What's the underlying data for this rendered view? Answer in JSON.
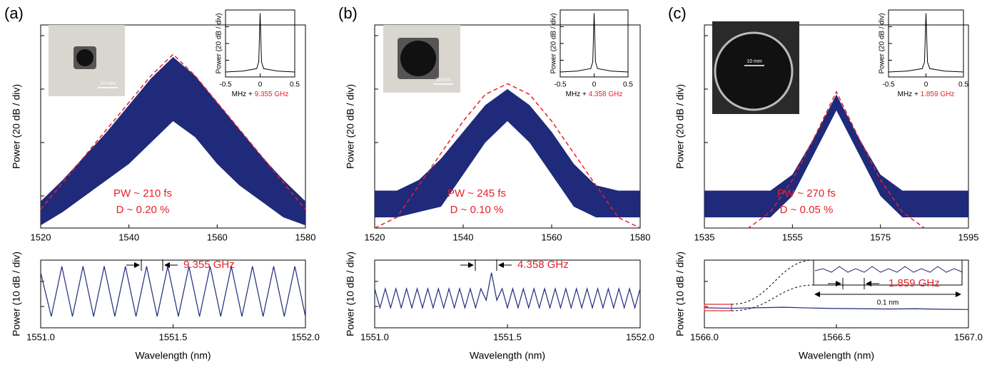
{
  "chart_data": [
    {
      "type": "spectrum",
      "label": "(a)",
      "ylabel": "Power (20 dB / div)",
      "image_scale": "10 mm",
      "x": [
        1520,
        1525,
        1530,
        1535,
        1540,
        1545,
        1550,
        1555,
        1560,
        1565,
        1570,
        1575,
        1580
      ],
      "upper": [
        0.5,
        0.9,
        1.35,
        1.8,
        2.3,
        2.8,
        3.2,
        2.85,
        2.35,
        1.85,
        1.35,
        0.9,
        0.5
      ],
      "lower": [
        0.05,
        0.3,
        0.6,
        0.9,
        1.2,
        1.6,
        2.0,
        1.7,
        1.2,
        0.8,
        0.5,
        0.2,
        0.05
      ],
      "fit": [
        0.35,
        0.85,
        1.35,
        1.85,
        2.35,
        2.85,
        3.25,
        2.85,
        2.35,
        1.85,
        1.35,
        0.85,
        0.35
      ],
      "color": "#1f2a7a",
      "fit_color": "#e8202a",
      "xlim": [
        1520,
        1580
      ],
      "xticks": [
        1520,
        1540,
        1560,
        1580
      ],
      "ylim": [
        0,
        3.8
      ],
      "yticks": [
        0.6,
        1.6,
        2.6,
        3.6
      ],
      "annotations": [
        "PW ~ 210 fs",
        "D ~ 0.20 %"
      ]
    },
    {
      "type": "line",
      "ylabel": "Power (20 dB / div)",
      "xlabel": "MHz +",
      "xlabel_value": "9.355 GHz",
      "x": [
        -0.5,
        -0.25,
        -0.05,
        -0.02,
        0,
        0.02,
        0.05,
        0.25,
        0.5
      ],
      "values": [
        0.3,
        0.35,
        0.5,
        0.9,
        3.8,
        0.9,
        0.5,
        0.35,
        0.3
      ],
      "color": "#000000",
      "xlim": [
        -0.5,
        0.5
      ],
      "xticks": [
        -0.5,
        0,
        0.5
      ],
      "ylim": [
        0,
        4
      ],
      "yticks": [
        1,
        2,
        3
      ]
    },
    {
      "type": "line",
      "ylabel": "Power (10 dB / div)",
      "xlabel": "Wavelength (nm)",
      "x": [
        1551.0,
        1551.04,
        1551.08,
        1551.12,
        1551.16,
        1551.2,
        1551.24,
        1551.28,
        1551.32,
        1551.36,
        1551.4,
        1551.44,
        1551.48,
        1551.52,
        1551.56,
        1551.6,
        1551.64,
        1551.68,
        1551.72,
        1551.76,
        1551.8,
        1551.84,
        1551.88,
        1551.92,
        1551.96,
        1552.0
      ],
      "values": [
        2.2,
        0.45,
        2.45,
        0.45,
        2.45,
        0.45,
        2.45,
        0.45,
        2.45,
        0.45,
        2.45,
        0.45,
        2.45,
        0.45,
        2.45,
        0.45,
        2.45,
        0.45,
        2.45,
        0.45,
        2.45,
        0.45,
        2.45,
        0.45,
        2.45,
        0.45
      ],
      "color": "#1f2a7a",
      "xlim": [
        1551,
        1552
      ],
      "xticks": [
        {
          "value": 1551,
          "label": "1551.0"
        },
        {
          "value": 1551.5,
          "label": "1551.5"
        },
        {
          "value": 1552,
          "label": "1552.0"
        }
      ],
      "ylim": [
        0,
        2.7
      ],
      "yticks": [
        0.85,
        1.85
      ],
      "annotations": [
        "9.355 GHz"
      ]
    },
    {
      "type": "spectrum",
      "label": "(b)",
      "ylabel": "Power (20 dB / div)",
      "image_scale": "10 mm",
      "x": [
        1520,
        1525,
        1530,
        1535,
        1540,
        1545,
        1550,
        1555,
        1560,
        1565,
        1570,
        1575,
        1580
      ],
      "upper": [
        0.7,
        0.7,
        0.9,
        1.3,
        1.8,
        2.3,
        2.6,
        2.3,
        1.8,
        1.2,
        0.8,
        0.7,
        0.7
      ],
      "lower": [
        0.2,
        0.2,
        0.3,
        0.4,
        1.0,
        1.6,
        2.0,
        1.6,
        1.0,
        0.4,
        0.2,
        0.2,
        0.2
      ],
      "fit": [
        0,
        0.2,
        0.8,
        1.4,
        2.0,
        2.5,
        2.7,
        2.5,
        2.0,
        1.4,
        0.8,
        0.2,
        0
      ],
      "color": "#1f2a7a",
      "fit_color": "#e8202a",
      "xlim": [
        1520,
        1580
      ],
      "xticks": [
        1520,
        1540,
        1560,
        1580
      ],
      "ylim": [
        0,
        3.8
      ],
      "yticks": [
        0.6,
        1.6,
        2.6,
        3.6
      ],
      "annotations": [
        "PW ~ 245 fs",
        "D ~ 0.10 %"
      ]
    },
    {
      "type": "line",
      "ylabel": "Power (20 dB / div)",
      "xlabel": "MHz +",
      "xlabel_value": "4.358 GHz",
      "x": [
        -0.5,
        -0.25,
        -0.05,
        -0.02,
        0,
        0.02,
        0.05,
        0.25,
        0.5
      ],
      "values": [
        0.3,
        0.35,
        0.5,
        0.9,
        3.8,
        0.9,
        0.5,
        0.35,
        0.3
      ],
      "color": "#000000",
      "xlim": [
        -0.5,
        0.5
      ],
      "xticks": [
        -0.5,
        0,
        0.5
      ],
      "ylim": [
        0,
        4
      ],
      "yticks": [
        1,
        2,
        3
      ]
    },
    {
      "type": "line",
      "ylabel": "Power (10 dB / div)",
      "xlabel": "Wavelength (nm)",
      "x": [
        1551.0,
        1551.02,
        1551.04,
        1551.06,
        1551.08,
        1551.1,
        1551.12,
        1551.14,
        1551.16,
        1551.18,
        1551.2,
        1551.22,
        1551.24,
        1551.26,
        1551.28,
        1551.3,
        1551.32,
        1551.34,
        1551.36,
        1551.38,
        1551.4,
        1551.42,
        1551.44,
        1551.46,
        1551.48,
        1551.5,
        1551.52,
        1551.54,
        1551.56,
        1551.58,
        1551.6,
        1551.62,
        1551.64,
        1551.66,
        1551.68,
        1551.7,
        1551.72,
        1551.74,
        1551.76,
        1551.78,
        1551.8,
        1551.82,
        1551.84,
        1551.86,
        1551.88,
        1551.9,
        1551.92,
        1551.94,
        1551.96,
        1551.98,
        1552.0
      ],
      "values": [
        1.56,
        0.8,
        1.56,
        0.8,
        1.56,
        0.8,
        1.56,
        0.8,
        1.56,
        0.8,
        1.56,
        0.8,
        1.56,
        0.8,
        1.56,
        0.8,
        1.56,
        0.8,
        1.56,
        0.8,
        1.56,
        1.1,
        2.2,
        1.1,
        1.56,
        0.8,
        1.56,
        0.8,
        1.56,
        0.8,
        1.56,
        0.8,
        1.56,
        0.8,
        1.56,
        0.8,
        1.56,
        0.8,
        1.56,
        0.8,
        1.56,
        0.8,
        1.56,
        0.8,
        1.56,
        0.8,
        1.56,
        0.8,
        1.56,
        0.8,
        1.56
      ],
      "color": "#1f2a7a",
      "xlim": [
        1551,
        1552
      ],
      "xticks": [
        {
          "value": 1551,
          "label": "1551.0"
        },
        {
          "value": 1551.5,
          "label": "1551.5"
        },
        {
          "value": 1552,
          "label": "1552.0"
        }
      ],
      "ylim": [
        0,
        2.7
      ],
      "yticks": [
        0.85,
        1.85
      ],
      "annotations": [
        "4.358 GHz"
      ]
    },
    {
      "type": "spectrum",
      "label": "(c)",
      "ylabel": "Power (20 dB / div)",
      "image_scale": "10 mm",
      "x": [
        1535,
        1540,
        1545,
        1550,
        1555,
        1560,
        1565,
        1570,
        1575,
        1580,
        1585,
        1590,
        1595
      ],
      "upper": [
        0.7,
        0.7,
        0.7,
        0.7,
        1.0,
        1.7,
        2.5,
        1.7,
        1.0,
        0.7,
        0.7,
        0.7,
        0.7
      ],
      "lower": [
        0.2,
        0.2,
        0.2,
        0.2,
        0.6,
        1.4,
        2.2,
        1.4,
        0.6,
        0.2,
        0.2,
        0.2,
        0.2
      ],
      "fit": [
        0,
        0,
        0,
        0.3,
        0.9,
        1.7,
        2.55,
        1.7,
        0.9,
        0.3,
        0,
        0,
        0
      ],
      "color": "#1f2a7a",
      "fit_color": "#e8202a",
      "xlim": [
        1535,
        1595
      ],
      "xticks": [
        1535,
        1555,
        1575,
        1595
      ],
      "ylim": [
        0,
        3.8
      ],
      "yticks": [
        0.6,
        1.6,
        2.6,
        3.6
      ],
      "annotations": [
        "PW ~ 270 fs",
        "D ~ 0.05 %"
      ]
    },
    {
      "type": "line",
      "ylabel": "Power (20 dB / div)",
      "xlabel": "MHz +",
      "xlabel_value": "1.859 GHz",
      "x": [
        -0.5,
        -0.25,
        -0.05,
        -0.02,
        0,
        0.02,
        0.05,
        0.25,
        0.5
      ],
      "values": [
        0.3,
        0.35,
        0.5,
        0.9,
        3.8,
        0.9,
        0.5,
        0.35,
        0.3
      ],
      "color": "#000000",
      "xlim": [
        -0.5,
        0.5
      ],
      "xticks": [
        -0.5,
        0,
        0.5
      ],
      "ylim": [
        0,
        4
      ],
      "yticks": [
        1,
        2,
        3
      ]
    },
    {
      "type": "line",
      "ylabel": "Power (10 dB / div)",
      "xlabel": "Wavelength (nm)",
      "x": [
        1566.0,
        1566.1,
        1566.2,
        1566.3,
        1566.4,
        1566.5,
        1566.6,
        1566.7,
        1566.8,
        1566.9,
        1567.0
      ],
      "values": [
        0.8,
        0.78,
        0.8,
        0.82,
        0.79,
        0.77,
        0.76,
        0.75,
        0.76,
        0.74,
        0.73
      ],
      "color": "#1f2a7a",
      "xlim": [
        1566,
        1567
      ],
      "xticks": [
        {
          "value": 1566,
          "label": "1566.0"
        },
        {
          "value": 1566.5,
          "label": "1566.5"
        },
        {
          "value": 1567,
          "label": "1567.0"
        }
      ],
      "ylim": [
        0,
        2.7
      ],
      "yticks": [
        0.85,
        1.85
      ],
      "annotations": [
        "1.859 GHz",
        "0.1 nm"
      ]
    }
  ]
}
